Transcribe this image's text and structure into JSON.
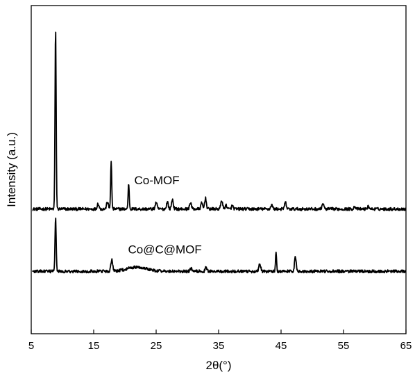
{
  "chart_data": {
    "type": "line",
    "xlabel": "2θ(°)",
    "ylabel": "Intensity (a.u.)",
    "xlim": [
      5,
      65
    ],
    "x_ticks": [
      5,
      15,
      25,
      35,
      45,
      55,
      65
    ],
    "ylim": [
      0,
      100
    ],
    "y_ticks_shown": false,
    "grid": false,
    "legend": "none",
    "colors": {
      "line": "#000000",
      "axis": "#000000",
      "background": "#ffffff"
    },
    "series": [
      {
        "name": "Co-MOF",
        "baseline": 38,
        "peaks": [
          {
            "x": 8.9,
            "height": 55
          },
          {
            "x": 15.7,
            "height": 1.7
          },
          {
            "x": 17.2,
            "height": 2.2
          },
          {
            "x": 17.8,
            "height": 14.3
          },
          {
            "x": 20.6,
            "height": 7.8
          },
          {
            "x": 25.0,
            "height": 2.0
          },
          {
            "x": 26.8,
            "height": 2.2
          },
          {
            "x": 27.6,
            "height": 2.9
          },
          {
            "x": 30.5,
            "height": 2.0
          },
          {
            "x": 32.3,
            "height": 1.8
          },
          {
            "x": 32.9,
            "height": 3.3
          },
          {
            "x": 35.5,
            "height": 2.7
          },
          {
            "x": 36.2,
            "height": 1.2
          },
          {
            "x": 37.2,
            "height": 1.0
          },
          {
            "x": 43.5,
            "height": 1.3
          },
          {
            "x": 45.7,
            "height": 2.0
          },
          {
            "x": 51.7,
            "height": 1.7
          },
          {
            "x": 56.8,
            "height": 0.8
          },
          {
            "x": 59.0,
            "height": 0.8
          }
        ]
      },
      {
        "name": "Co@C@MOF",
        "baseline": 19,
        "peaks": [
          {
            "x": 8.9,
            "height": 16.8
          },
          {
            "x": 17.9,
            "height": 3.4
          },
          {
            "x": 22.0,
            "height": 1.3
          },
          {
            "x": 30.6,
            "height": 0.9
          },
          {
            "x": 33.0,
            "height": 1.2
          },
          {
            "x": 41.6,
            "height": 2.4
          },
          {
            "x": 44.2,
            "height": 5.8
          },
          {
            "x": 47.3,
            "height": 4.5
          }
        ]
      }
    ]
  }
}
